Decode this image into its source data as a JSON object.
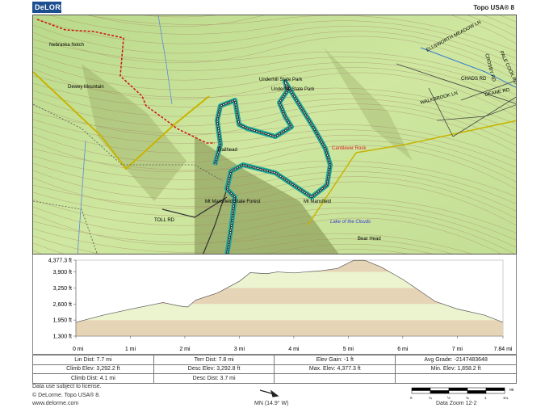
{
  "header": {
    "logo_text": "DeLORME",
    "product": "Topo USA® 8"
  },
  "map": {
    "labels": [
      {
        "text": "Dewey Mountain",
        "color": "#333"
      },
      {
        "text": "Nebraska Notch",
        "color": "#333"
      },
      {
        "text": "Underhill State Park",
        "color": "#333"
      },
      {
        "text": "Underhill State Park",
        "color": "#333"
      },
      {
        "text": "Cantilever Rock",
        "color": "#d22"
      },
      {
        "text": "Trailhead",
        "color": "#333"
      },
      {
        "text": "Mt Mansfield State Forest",
        "color": "#333"
      },
      {
        "text": "TOLL RD",
        "color": "#333"
      },
      {
        "text": "Mt Mansfield",
        "color": "#333"
      },
      {
        "text": "Lake of the Clouds",
        "color": "#3a3ad0"
      },
      {
        "text": "Bear Head",
        "color": "#333"
      },
      {
        "text": "ELLSWORTH MEADOW LN",
        "color": "#333"
      },
      {
        "text": "CROSBY RD",
        "color": "#333"
      },
      {
        "text": "CHADS RD",
        "color": "#333"
      },
      {
        "text": "WALKBROOK LN",
        "color": "#333"
      },
      {
        "text": "DEANE RD",
        "color": "#333"
      },
      {
        "text": "PALE COOK RD",
        "color": "#333"
      }
    ],
    "colors": {
      "terrain": "#c8e39a",
      "route_halo": "#1aa99a",
      "trail": "#d01010",
      "boundary": "#c8b400"
    }
  },
  "chart_data": {
    "type": "area",
    "xlabel": "",
    "ylabel": "",
    "x_ticks": [
      "0 mi",
      "1 mi",
      "2 mi",
      "3 mi",
      "4 mi",
      "5 mi",
      "6 mi",
      "7 mi",
      "7.84 mi"
    ],
    "x_tick_values": [
      0,
      1,
      2,
      3,
      4,
      5,
      6,
      7,
      7.84
    ],
    "y_ticks": [
      "4,377.3 ft",
      "3,900 ft",
      "3,250 ft",
      "2,600 ft",
      "1,950 ft",
      "1,300 ft"
    ],
    "y_tick_values": [
      4377.3,
      3900,
      3250,
      2600,
      1950,
      1300
    ],
    "xlim": [
      0,
      7.84
    ],
    "ylim": [
      1300,
      4377.3
    ],
    "series": [
      {
        "x": [
          0,
          0.5,
          1,
          1.6,
          1.9,
          2.05,
          2.2,
          2.6,
          3,
          3.2,
          3.5,
          3.7,
          4,
          4.5,
          4.8,
          5.1,
          5.3,
          5.6,
          6,
          6.3,
          6.6,
          7,
          7.5,
          7.84
        ],
        "y": [
          1858,
          2150,
          2390,
          2660,
          2520,
          2480,
          2760,
          3050,
          3520,
          3870,
          3830,
          3900,
          3860,
          3950,
          4040,
          4370,
          4370,
          4100,
          3600,
          3150,
          2700,
          2400,
          2150,
          1858
        ]
      }
    ],
    "band_colors": [
      "#e6d4b6",
      "#ebf3cf"
    ]
  },
  "stats": [
    [
      "Lin Dist:  7.7 mi",
      "Terr Dist:  7.8 mi",
      "Elev Gain:  -1 ft",
      "Avg Grade:  -2147483648"
    ],
    [
      "Climb Elev:  3,292.2 ft",
      "Desc Elev:  3,292.8 ft",
      "Max. Elev:  4,377.3 ft",
      "Min. Elev:  1,858.2 ft"
    ],
    [
      "Climb Dist:  4.1 mi",
      "Desc Dist:  3.7 mi",
      "",
      ""
    ]
  ],
  "footer": {
    "license": "Data use subject to license.",
    "copyright": "© DeLorme. Topo USA® 8.",
    "url": "www.delorme.com",
    "declination": "MN (14.9° W)",
    "scale_unit": "mi",
    "scale_ticks": [
      "0",
      "¼",
      "½",
      "¾",
      "1",
      "1¼"
    ],
    "data_zoom": "Data Zoom 12-2"
  }
}
